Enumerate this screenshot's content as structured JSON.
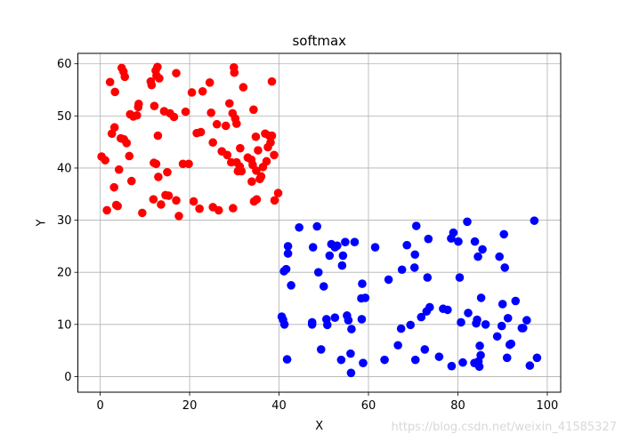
{
  "chart_data": {
    "type": "scatter",
    "title": "softmax",
    "xlabel": "X",
    "ylabel": "Y",
    "xlim": [
      -5,
      103
    ],
    "ylim": [
      -3,
      62
    ],
    "xticks": [
      0,
      20,
      40,
      60,
      80,
      100
    ],
    "yticks": [
      0,
      10,
      20,
      30,
      40,
      50,
      60
    ],
    "grid": true,
    "series": [
      {
        "color": "#ff0000",
        "points": [
          [
            0.3,
            42.2
          ],
          [
            1.1,
            41.5
          ],
          [
            1.5,
            31.9
          ],
          [
            2.2,
            56.5
          ],
          [
            2.6,
            46.6
          ],
          [
            3.1,
            36.3
          ],
          [
            3.2,
            47.8
          ],
          [
            3.3,
            54.6
          ],
          [
            3.6,
            32.9
          ],
          [
            3.9,
            32.7
          ],
          [
            4.2,
            39.7
          ],
          [
            4.6,
            45.7
          ],
          [
            4.8,
            59.2
          ],
          [
            5.2,
            58.5
          ],
          [
            5.3,
            45.5
          ],
          [
            5.5,
            57.5
          ],
          [
            5.9,
            44.8
          ],
          [
            6.5,
            42.3
          ],
          [
            6.7,
            50.3
          ],
          [
            7.0,
            37.5
          ],
          [
            7.4,
            49.9
          ],
          [
            8.2,
            50.1
          ],
          [
            8.5,
            51.7
          ],
          [
            8.6,
            52.3
          ],
          [
            9.4,
            31.4
          ],
          [
            11.3,
            56.6
          ],
          [
            11.5,
            55.9
          ],
          [
            11.9,
            34.0
          ],
          [
            12.0,
            41.0
          ],
          [
            12.1,
            51.9
          ],
          [
            12.4,
            58.7
          ],
          [
            12.5,
            40.8
          ],
          [
            12.6,
            57.7
          ],
          [
            12.8,
            59.4
          ],
          [
            12.9,
            46.2
          ],
          [
            13.0,
            38.3
          ],
          [
            13.2,
            57.2
          ],
          [
            13.6,
            33.0
          ],
          [
            14.3,
            50.9
          ],
          [
            14.6,
            34.8
          ],
          [
            15.0,
            39.2
          ],
          [
            15.3,
            34.7
          ],
          [
            15.6,
            50.5
          ],
          [
            16.5,
            49.8
          ],
          [
            17.0,
            58.2
          ],
          [
            17.0,
            33.8
          ],
          [
            17.6,
            30.8
          ],
          [
            18.5,
            40.8
          ],
          [
            19.1,
            50.8
          ],
          [
            19.8,
            40.8
          ],
          [
            20.5,
            54.5
          ],
          [
            20.9,
            33.6
          ],
          [
            21.6,
            46.7
          ],
          [
            22.2,
            32.2
          ],
          [
            22.5,
            46.9
          ],
          [
            22.9,
            54.7
          ],
          [
            24.5,
            56.4
          ],
          [
            24.8,
            50.6
          ],
          [
            25.2,
            44.9
          ],
          [
            25.2,
            32.5
          ],
          [
            26.1,
            48.4
          ],
          [
            26.5,
            31.9
          ],
          [
            27.2,
            43.2
          ],
          [
            28.1,
            48.1
          ],
          [
            28.4,
            42.5
          ],
          [
            28.9,
            52.4
          ],
          [
            29.3,
            41.1
          ],
          [
            29.6,
            50.5
          ],
          [
            29.7,
            32.3
          ],
          [
            29.9,
            59.3
          ],
          [
            30.0,
            58.3
          ],
          [
            30.2,
            49.5
          ],
          [
            30.5,
            48.5
          ],
          [
            30.5,
            41.1
          ],
          [
            30.8,
            39.4
          ],
          [
            31.2,
            40.3
          ],
          [
            31.3,
            43.8
          ],
          [
            31.6,
            39.4
          ],
          [
            32.0,
            55.5
          ],
          [
            33.0,
            42.0
          ],
          [
            33.8,
            41.6
          ],
          [
            33.9,
            37.4
          ],
          [
            34.1,
            40.6
          ],
          [
            34.3,
            51.2
          ],
          [
            34.4,
            33.6
          ],
          [
            34.8,
            46.0
          ],
          [
            34.9,
            39.5
          ],
          [
            35.0,
            34.0
          ],
          [
            35.3,
            43.4
          ],
          [
            35.7,
            37.9
          ],
          [
            36.0,
            38.4
          ],
          [
            36.4,
            40.2
          ],
          [
            36.9,
            46.6
          ],
          [
            37.2,
            41.3
          ],
          [
            37.5,
            44.0
          ],
          [
            37.8,
            46.2
          ],
          [
            38.1,
            44.9
          ],
          [
            38.4,
            46.2
          ],
          [
            38.4,
            56.6
          ],
          [
            38.9,
            42.5
          ],
          [
            39.0,
            33.8
          ],
          [
            39.8,
            35.2
          ]
        ]
      },
      {
        "color": "#0000ff",
        "points": [
          [
            40.6,
            11.5
          ],
          [
            40.9,
            10.9
          ],
          [
            41.1,
            20.2
          ],
          [
            41.2,
            10.0
          ],
          [
            41.6,
            20.6
          ],
          [
            41.8,
            3.3
          ],
          [
            42.0,
            23.6
          ],
          [
            42.0,
            25.0
          ],
          [
            42.7,
            17.5
          ],
          [
            44.5,
            28.6
          ],
          [
            47.4,
            10.4
          ],
          [
            47.4,
            10.0
          ],
          [
            47.6,
            24.8
          ],
          [
            48.5,
            28.8
          ],
          [
            48.8,
            20.0
          ],
          [
            49.4,
            5.2
          ],
          [
            50.0,
            17.3
          ],
          [
            50.6,
            11.0
          ],
          [
            50.8,
            9.9
          ],
          [
            51.3,
            23.2
          ],
          [
            51.7,
            25.4
          ],
          [
            52.5,
            11.3
          ],
          [
            52.5,
            24.8
          ],
          [
            53.0,
            25.1
          ],
          [
            53.9,
            3.2
          ],
          [
            54.1,
            21.3
          ],
          [
            54.3,
            23.2
          ],
          [
            54.8,
            25.8
          ],
          [
            55.2,
            11.7
          ],
          [
            55.5,
            10.8
          ],
          [
            56.0,
            4.4
          ],
          [
            56.1,
            0.7
          ],
          [
            56.2,
            9.1
          ],
          [
            56.9,
            25.8
          ],
          [
            58.4,
            15.0
          ],
          [
            58.5,
            11.0
          ],
          [
            58.6,
            17.8
          ],
          [
            58.8,
            2.6
          ],
          [
            59.3,
            15.1
          ],
          [
            61.5,
            24.8
          ],
          [
            63.6,
            3.2
          ],
          [
            64.5,
            18.6
          ],
          [
            66.6,
            6.0
          ],
          [
            67.3,
            9.2
          ],
          [
            67.5,
            20.5
          ],
          [
            68.6,
            25.2
          ],
          [
            69.4,
            9.9
          ],
          [
            70.3,
            20.9
          ],
          [
            70.4,
            23.4
          ],
          [
            70.5,
            3.2
          ],
          [
            70.7,
            28.9
          ],
          [
            71.8,
            11.4
          ],
          [
            72.6,
            5.2
          ],
          [
            73.0,
            12.5
          ],
          [
            73.2,
            19.0
          ],
          [
            73.4,
            26.4
          ],
          [
            73.7,
            13.3
          ],
          [
            75.8,
            3.8
          ],
          [
            76.7,
            13.0
          ],
          [
            77.7,
            12.8
          ],
          [
            78.5,
            26.5
          ],
          [
            78.6,
            2.0
          ],
          [
            79.0,
            27.6
          ],
          [
            80.1,
            25.9
          ],
          [
            80.4,
            19.0
          ],
          [
            80.7,
            10.4
          ],
          [
            81.1,
            2.7
          ],
          [
            82.1,
            29.7
          ],
          [
            82.3,
            12.2
          ],
          [
            83.7,
            2.6
          ],
          [
            83.8,
            25.9
          ],
          [
            84.1,
            10.2
          ],
          [
            84.3,
            10.9
          ],
          [
            84.5,
            23.0
          ],
          [
            84.6,
            2.9
          ],
          [
            84.8,
            1.9
          ],
          [
            84.9,
            5.9
          ],
          [
            85.1,
            4.1
          ],
          [
            85.2,
            15.1
          ],
          [
            85.5,
            24.4
          ],
          [
            86.2,
            10.0
          ],
          [
            88.8,
            7.7
          ],
          [
            89.3,
            23.0
          ],
          [
            89.8,
            9.7
          ],
          [
            90.0,
            13.9
          ],
          [
            90.3,
            27.3
          ],
          [
            90.5,
            20.9
          ],
          [
            91.0,
            3.6
          ],
          [
            91.2,
            11.2
          ],
          [
            91.6,
            6.1
          ],
          [
            91.9,
            6.3
          ],
          [
            92.9,
            14.5
          ],
          [
            94.3,
            9.3
          ],
          [
            94.6,
            9.3
          ],
          [
            95.4,
            10.8
          ],
          [
            96.1,
            2.1
          ],
          [
            97.1,
            29.9
          ],
          [
            97.7,
            3.6
          ]
        ]
      }
    ]
  },
  "watermark": "https://blog.csdn.net/weixin_41585327"
}
